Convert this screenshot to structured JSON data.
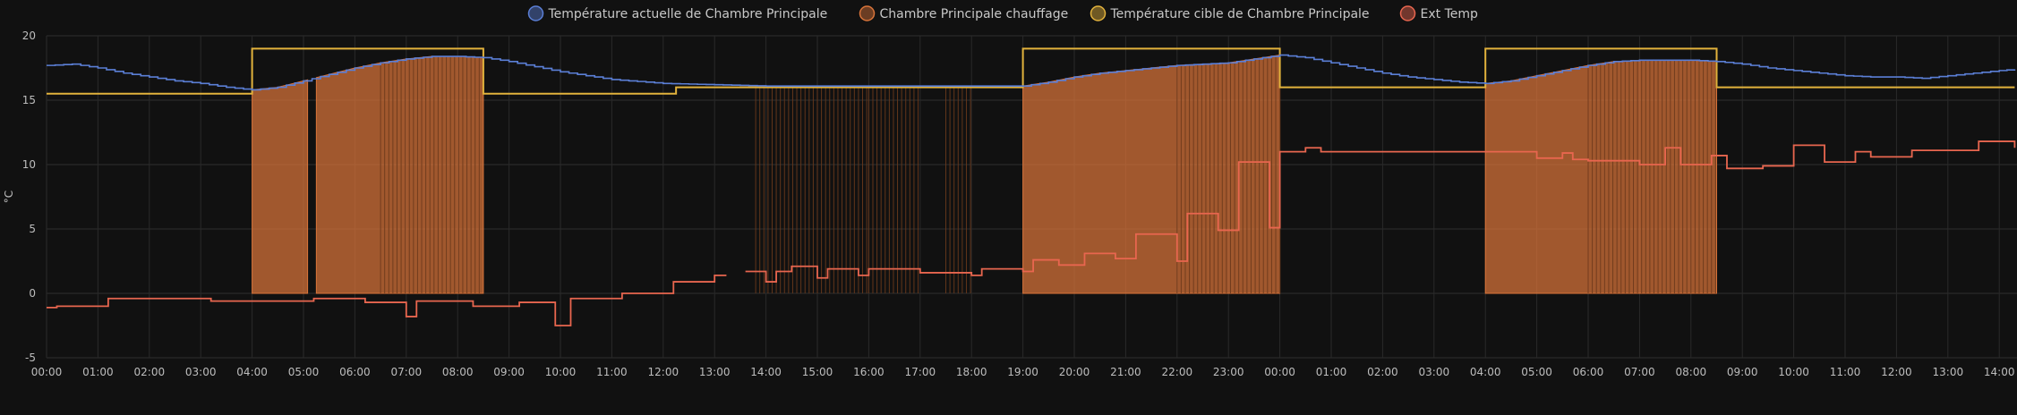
{
  "chart_data": {
    "type": "line",
    "ylabel": "°C",
    "ylim": [
      -5,
      20
    ],
    "yticks": [
      20,
      15,
      10,
      5,
      0,
      -5
    ],
    "grid": true,
    "legend_placement": "top-center",
    "x_ticks": [
      "00:00",
      "01:00",
      "02:00",
      "03:00",
      "04:00",
      "05:00",
      "06:00",
      "07:00",
      "08:00",
      "09:00",
      "10:00",
      "11:00",
      "12:00",
      "13:00",
      "14:00",
      "15:00",
      "16:00",
      "17:00",
      "18:00",
      "19:00",
      "20:00",
      "21:00",
      "22:00",
      "23:00",
      "00:00",
      "01:00",
      "02:00",
      "03:00",
      "04:00",
      "05:00",
      "06:00",
      "07:00",
      "08:00",
      "09:00",
      "10:00",
      "11:00",
      "12:00",
      "13:00",
      "14:00"
    ],
    "series": [
      {
        "name": "Température actuelle de Chambre Principale",
        "color": "#5b7fd6",
        "x": [
          0,
          0.5,
          1,
          1.5,
          2,
          2.5,
          3,
          3.5,
          4,
          4.5,
          5,
          5.5,
          6,
          6.5,
          7,
          7.5,
          8,
          8.5,
          9,
          9.5,
          10,
          11,
          12,
          13,
          14,
          15,
          16,
          17,
          18,
          19,
          19.5,
          20,
          20.5,
          21,
          21.5,
          22,
          22.5,
          23,
          23.5,
          24,
          24.5,
          25,
          25.5,
          26,
          26.5,
          27,
          27.5,
          28,
          28.5,
          29,
          29.5,
          30,
          30.5,
          31,
          31.5,
          32,
          32.5,
          33,
          33.5,
          34,
          34.5,
          35,
          35.5,
          36,
          36.5,
          37,
          37.5,
          38,
          38.3
        ],
        "y": [
          17.7,
          17.8,
          17.5,
          17.1,
          16.8,
          16.5,
          16.3,
          16.0,
          15.8,
          16.0,
          16.5,
          17.0,
          17.5,
          17.9,
          18.2,
          18.4,
          18.4,
          18.3,
          18.0,
          17.6,
          17.2,
          16.6,
          16.3,
          16.2,
          16.1,
          16.1,
          16.1,
          16.1,
          16.1,
          16.1,
          16.4,
          16.8,
          17.1,
          17.3,
          17.5,
          17.7,
          17.8,
          17.9,
          18.2,
          18.5,
          18.3,
          17.9,
          17.5,
          17.1,
          16.8,
          16.6,
          16.4,
          16.3,
          16.5,
          16.9,
          17.3,
          17.7,
          18.0,
          18.1,
          18.1,
          18.1,
          18.0,
          17.8,
          17.5,
          17.3,
          17.1,
          16.9,
          16.8,
          16.8,
          16.7,
          16.9,
          17.1,
          17.3,
          17.4
        ]
      },
      {
        "name": "Chambre Principale chauffage",
        "color": "#d9743a",
        "type": "step-area",
        "on_intervals": [
          [
            4.0,
            5.08
          ],
          [
            5.25,
            8.5
          ],
          [
            19.0,
            24.0
          ],
          [
            28.0,
            32.5
          ]
        ],
        "flicker_intervals": [
          [
            6.5,
            8.5
          ],
          [
            13.8,
            16.0
          ],
          [
            16.0,
            17.0
          ],
          [
            17.5,
            18.0
          ],
          [
            22.0,
            24.0
          ],
          [
            30.0,
            32.5
          ]
        ],
        "on_value": 0,
        "top_follows": "Température actuelle de Chambre Principale"
      },
      {
        "name": "Température cible de Chambre Principale",
        "color": "#e2b23c",
        "type": "step",
        "x": [
          0,
          4,
          8.5,
          12.25,
          19,
          24,
          28,
          32.5,
          38.3
        ],
        "y": [
          15.5,
          19,
          15.5,
          16,
          19,
          16,
          19,
          16,
          16
        ]
      },
      {
        "name": "Ext Temp",
        "color": "#e8664f",
        "type": "step",
        "x": [
          0,
          0.2,
          1.2,
          3.2,
          5.2,
          6.2,
          7.0,
          7.2,
          7.5,
          8.3,
          9.2,
          9.9,
          10.2,
          11.2,
          12.2,
          13.0,
          13.3,
          13.6,
          14.0,
          14.2,
          14.5,
          15.0,
          15.2,
          15.8,
          16.0,
          16.2,
          17.0,
          17.5,
          18.0,
          18.2,
          19.0,
          19.2,
          19.7,
          20.2,
          20.8,
          21.2,
          22.0,
          22.2,
          22.8,
          23.2,
          23.8,
          24.0,
          24.5,
          24.8,
          25.2,
          25.5,
          26.5,
          27.0,
          28.0,
          29.0,
          29.5,
          29.7,
          30.0,
          31.0,
          31.5,
          31.8,
          32.4,
          32.7,
          33.4,
          34.0,
          34.6,
          35.2,
          35.5,
          36.3,
          37.2,
          37.5,
          37.6,
          38.3
        ],
        "y": [
          -1.1,
          -1.0,
          -0.4,
          -0.6,
          -0.4,
          -0.7,
          -1.8,
          -0.6,
          -0.6,
          -1.0,
          -0.7,
          -2.5,
          -0.4,
          0,
          0.9,
          1.4,
          null,
          1.7,
          0.9,
          1.7,
          2.1,
          1.2,
          1.9,
          1.4,
          1.9,
          1.9,
          1.6,
          1.6,
          1.4,
          1.9,
          1.7,
          2.6,
          2.2,
          3.1,
          2.7,
          4.6,
          2.5,
          6.2,
          4.9,
          10.2,
          5.1,
          11.0,
          11.3,
          11.0,
          11.0,
          11.0,
          11.0,
          11.0,
          11.0,
          10.5,
          10.9,
          10.4,
          10.3,
          10.0,
          11.3,
          10.0,
          10.7,
          9.7,
          9.9,
          11.5,
          10.2,
          11.0,
          10.6,
          11.1,
          11.1,
          11.1,
          11.8,
          11.3
        ]
      }
    ]
  }
}
